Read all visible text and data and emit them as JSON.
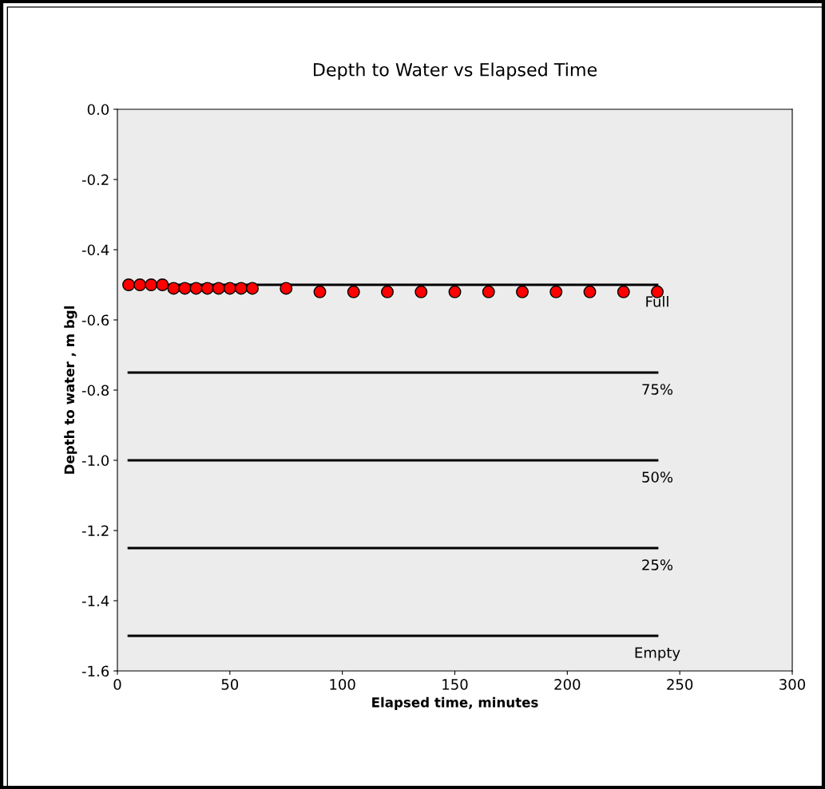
{
  "chart_data": {
    "type": "scatter",
    "title": "Depth to Water vs Elapsed Time",
    "xlabel": "Elapsed time, minutes",
    "ylabel": "Depth to water , m bgl",
    "xlim": [
      0,
      300
    ],
    "xticks": [
      0,
      50,
      100,
      150,
      200,
      250,
      300
    ],
    "ylim": [
      -1.6,
      0.0
    ],
    "yticks": [
      {
        "value": -1.6,
        "label": "-1.6"
      },
      {
        "value": -1.4,
        "label": "-1.4"
      },
      {
        "value": -1.2,
        "label": "-1.2"
      },
      {
        "value": -1.0,
        "label": "-1.0"
      },
      {
        "value": -0.8,
        "label": "-0.8"
      },
      {
        "value": -0.6,
        "label": "-0.6"
      },
      {
        "value": -0.4,
        "label": "-0.4"
      },
      {
        "value": -0.2,
        "label": "-0.2"
      },
      {
        "value": 0.0,
        "label": "0.0"
      }
    ],
    "grid": false,
    "legend": false,
    "marker": "circle",
    "series": [
      {
        "type": "line",
        "marker": "none",
        "name": "Full",
        "color": "#000000",
        "x": [
          5,
          240
        ],
        "values": [
          -0.5,
          -0.5
        ]
      },
      {
        "type": "line",
        "marker": "none",
        "name": "75%",
        "color": "#000000",
        "x": [
          5,
          240
        ],
        "values": [
          -0.75,
          -0.75
        ]
      },
      {
        "type": "line",
        "marker": "none",
        "name": "50%",
        "color": "#000000",
        "x": [
          5,
          240
        ],
        "values": [
          -1.0,
          -1.0
        ]
      },
      {
        "type": "line",
        "marker": "none",
        "name": "25%",
        "color": "#000000",
        "x": [
          5,
          240
        ],
        "values": [
          -1.25,
          -1.25
        ]
      },
      {
        "type": "line",
        "marker": "none",
        "name": "Empty",
        "color": "#000000",
        "x": [
          5,
          240
        ],
        "values": [
          -1.5,
          -1.5
        ]
      },
      {
        "color": "#ff0000",
        "x": [
          5,
          10,
          15,
          20,
          25,
          30,
          35,
          40,
          45,
          50,
          55,
          60,
          75,
          90,
          105,
          120,
          135,
          150,
          165,
          180,
          195,
          210,
          225,
          240
        ],
        "values": [
          -0.5,
          -0.5,
          -0.5,
          -0.5,
          -0.51,
          -0.51,
          -0.51,
          -0.51,
          -0.51,
          -0.51,
          -0.51,
          -0.51,
          -0.51,
          -0.52,
          -0.52,
          -0.52,
          -0.52,
          -0.52,
          -0.52,
          -0.52,
          -0.52,
          -0.52,
          -0.52,
          -0.52
        ]
      }
    ]
  }
}
